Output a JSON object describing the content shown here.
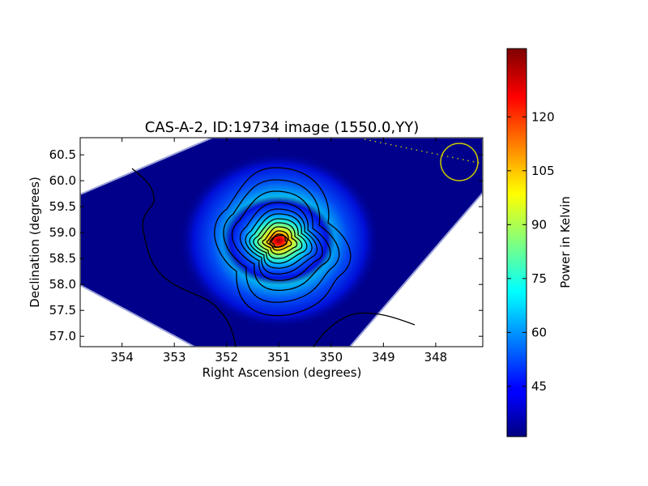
{
  "chart_data": {
    "type": "heatmap",
    "title": "CAS-A-2, ID:19734 image (1550.0,YY)",
    "xlabel": "Right Ascension (degrees)",
    "ylabel": "Declination (degrees)",
    "x_ticks": [
      354,
      353,
      352,
      351,
      350,
      349,
      348
    ],
    "y_ticks": [
      "57.0",
      "57.5",
      "58.0",
      "58.5",
      "59.0",
      "59.5",
      "60.0",
      "60.5"
    ],
    "xlim": [
      354.8,
      347.1
    ],
    "ylim": [
      56.8,
      60.83
    ],
    "peak": {
      "ra": 350.9,
      "dec": 58.82,
      "value": 130
    },
    "background_value": 32,
    "colorbar": {
      "label": "Power in Kelvin",
      "ticks": [
        "45",
        "60",
        "75",
        "90",
        "105",
        "120"
      ],
      "range": [
        31,
        139
      ],
      "colormap": "jet"
    },
    "beam_marker": {
      "ra": 347.5,
      "dec": 60.38,
      "color": "#c8c800"
    },
    "grid": false
  }
}
